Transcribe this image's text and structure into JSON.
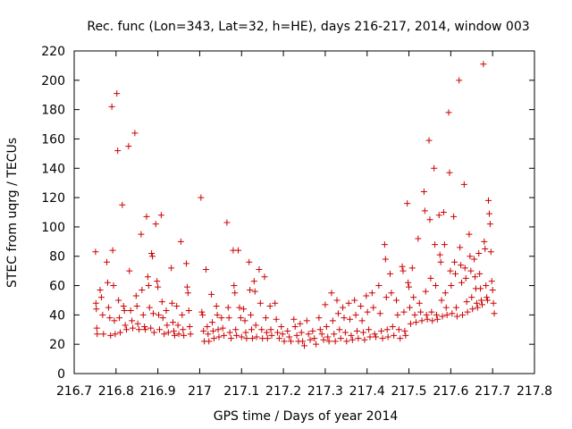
{
  "chart_data": {
    "type": "scatter",
    "title": "Rec. func (Lon=343, Lat=32, h=HE), days 216-217, 2014, window 003",
    "xlabel": "GPS time / Days of year 2014",
    "ylabel": "STEC from uqrg / TECUs",
    "xlim": [
      216.7,
      217.8
    ],
    "ylim": [
      0,
      220
    ],
    "xticks": [
      "216.7",
      "216.8",
      "216.9",
      "217",
      "217.1",
      "217.2",
      "217.3",
      "217.4",
      "217.5",
      "217.6",
      "217.7",
      "217.8"
    ],
    "yticks": [
      "0",
      "20",
      "40",
      "60",
      "80",
      "100",
      "120",
      "140",
      "160",
      "180",
      "200",
      "220"
    ],
    "grid": false,
    "legend": "none",
    "marker": "plus",
    "color": "#cc0000",
    "points": [
      [
        216.751,
        83
      ],
      [
        216.752,
        48
      ],
      [
        216.753,
        44
      ],
      [
        216.754,
        31
      ],
      [
        216.755,
        27
      ],
      [
        216.762,
        57
      ],
      [
        216.765,
        52
      ],
      [
        216.768,
        40
      ],
      [
        216.77,
        27
      ],
      [
        216.778,
        76
      ],
      [
        216.78,
        62
      ],
      [
        216.782,
        45
      ],
      [
        216.785,
        38
      ],
      [
        216.787,
        26
      ],
      [
        216.79,
        182
      ],
      [
        216.792,
        84
      ],
      [
        216.794,
        60
      ],
      [
        216.796,
        36
      ],
      [
        216.798,
        27
      ],
      [
        216.802,
        191
      ],
      [
        216.804,
        152
      ],
      [
        216.806,
        50
      ],
      [
        216.808,
        38
      ],
      [
        216.81,
        28
      ],
      [
        216.815,
        115
      ],
      [
        216.818,
        46
      ],
      [
        216.82,
        43
      ],
      [
        216.822,
        33
      ],
      [
        216.825,
        30
      ],
      [
        216.83,
        155
      ],
      [
        216.832,
        70
      ],
      [
        216.835,
        43
      ],
      [
        216.838,
        36
      ],
      [
        216.84,
        31
      ],
      [
        216.845,
        164
      ],
      [
        216.848,
        53
      ],
      [
        216.85,
        46
      ],
      [
        216.852,
        34
      ],
      [
        216.855,
        30
      ],
      [
        216.86,
        95
      ],
      [
        216.862,
        57
      ],
      [
        216.865,
        40
      ],
      [
        216.868,
        32
      ],
      [
        216.87,
        30
      ],
      [
        216.873,
        107
      ],
      [
        216.876,
        66
      ],
      [
        216.878,
        60
      ],
      [
        216.88,
        45
      ],
      [
        216.883,
        31
      ],
      [
        216.885,
        82
      ],
      [
        216.887,
        80
      ],
      [
        216.889,
        41
      ],
      [
        216.891,
        28
      ],
      [
        216.895,
        102
      ],
      [
        216.898,
        63
      ],
      [
        216.9,
        59
      ],
      [
        216.902,
        40
      ],
      [
        216.904,
        30
      ],
      [
        216.908,
        108
      ],
      [
        216.91,
        49
      ],
      [
        216.912,
        38
      ],
      [
        216.915,
        27
      ],
      [
        216.92,
        43
      ],
      [
        216.922,
        33
      ],
      [
        216.925,
        28
      ],
      [
        216.932,
        72
      ],
      [
        216.934,
        48
      ],
      [
        216.936,
        35
      ],
      [
        216.938,
        29
      ],
      [
        216.94,
        26
      ],
      [
        216.945,
        46
      ],
      [
        216.948,
        33
      ],
      [
        216.95,
        27
      ],
      [
        216.955,
        90
      ],
      [
        216.958,
        40
      ],
      [
        216.96,
        30
      ],
      [
        216.962,
        26
      ],
      [
        216.968,
        75
      ],
      [
        216.97,
        59
      ],
      [
        216.972,
        55
      ],
      [
        216.974,
        43
      ],
      [
        216.976,
        32
      ],
      [
        216.978,
        27
      ],
      [
        217.003,
        120
      ],
      [
        217.005,
        42
      ],
      [
        217.007,
        40
      ],
      [
        217.009,
        29
      ],
      [
        217.011,
        22
      ],
      [
        217.015,
        71
      ],
      [
        217.018,
        32
      ],
      [
        217.02,
        27
      ],
      [
        217.022,
        22
      ],
      [
        217.028,
        54
      ],
      [
        217.03,
        35
      ],
      [
        217.032,
        29
      ],
      [
        217.034,
        24
      ],
      [
        217.04,
        46
      ],
      [
        217.042,
        40
      ],
      [
        217.044,
        30
      ],
      [
        217.046,
        25
      ],
      [
        217.052,
        38
      ],
      [
        217.055,
        31
      ],
      [
        217.058,
        26
      ],
      [
        217.065,
        103
      ],
      [
        217.068,
        45
      ],
      [
        217.07,
        38
      ],
      [
        217.072,
        28
      ],
      [
        217.075,
        24
      ],
      [
        217.08,
        84
      ],
      [
        217.082,
        60
      ],
      [
        217.084,
        55
      ],
      [
        217.086,
        30
      ],
      [
        217.088,
        26
      ],
      [
        217.092,
        84
      ],
      [
        217.095,
        45
      ],
      [
        217.098,
        38
      ],
      [
        217.1,
        25
      ],
      [
        217.105,
        44
      ],
      [
        217.108,
        36
      ],
      [
        217.11,
        28
      ],
      [
        217.112,
        24
      ],
      [
        217.118,
        76
      ],
      [
        217.12,
        57
      ],
      [
        217.122,
        40
      ],
      [
        217.124,
        30
      ],
      [
        217.126,
        24
      ],
      [
        217.13,
        63
      ],
      [
        217.132,
        56
      ],
      [
        217.134,
        33
      ],
      [
        217.136,
        25
      ],
      [
        217.142,
        71
      ],
      [
        217.145,
        48
      ],
      [
        217.148,
        30
      ],
      [
        217.15,
        24
      ],
      [
        217.155,
        66
      ],
      [
        217.158,
        38
      ],
      [
        217.16,
        28
      ],
      [
        217.162,
        24
      ],
      [
        217.168,
        46
      ],
      [
        217.17,
        30
      ],
      [
        217.172,
        26
      ],
      [
        217.18,
        48
      ],
      [
        217.183,
        37
      ],
      [
        217.186,
        28
      ],
      [
        217.19,
        24
      ],
      [
        217.195,
        32
      ],
      [
        217.198,
        27
      ],
      [
        217.202,
        22
      ],
      [
        217.21,
        29
      ],
      [
        217.214,
        25
      ],
      [
        217.218,
        22
      ],
      [
        217.225,
        37
      ],
      [
        217.228,
        32
      ],
      [
        217.232,
        26
      ],
      [
        217.236,
        22
      ],
      [
        217.24,
        34
      ],
      [
        217.243,
        28
      ],
      [
        217.246,
        22
      ],
      [
        217.25,
        19
      ],
      [
        217.256,
        36
      ],
      [
        217.26,
        27
      ],
      [
        217.264,
        23
      ],
      [
        217.27,
        29
      ],
      [
        217.274,
        24
      ],
      [
        217.278,
        20
      ],
      [
        217.285,
        38
      ],
      [
        217.288,
        30
      ],
      [
        217.292,
        27
      ],
      [
        217.296,
        23
      ],
      [
        217.3,
        47
      ],
      [
        217.303,
        32
      ],
      [
        217.306,
        25
      ],
      [
        217.309,
        22
      ],
      [
        217.315,
        55
      ],
      [
        217.318,
        36
      ],
      [
        217.321,
        27
      ],
      [
        217.324,
        22
      ],
      [
        217.328,
        50
      ],
      [
        217.331,
        41
      ],
      [
        217.334,
        30
      ],
      [
        217.337,
        24
      ],
      [
        217.342,
        45
      ],
      [
        217.345,
        38
      ],
      [
        217.348,
        28
      ],
      [
        217.351,
        22
      ],
      [
        217.356,
        48
      ],
      [
        217.359,
        37
      ],
      [
        217.362,
        26
      ],
      [
        217.365,
        23
      ],
      [
        217.37,
        50
      ],
      [
        217.373,
        40
      ],
      [
        217.376,
        29
      ],
      [
        217.379,
        24
      ],
      [
        217.385,
        46
      ],
      [
        217.388,
        36
      ],
      [
        217.391,
        28
      ],
      [
        217.394,
        23
      ],
      [
        217.398,
        53
      ],
      [
        217.401,
        42
      ],
      [
        217.404,
        30
      ],
      [
        217.407,
        25
      ],
      [
        217.412,
        55
      ],
      [
        217.415,
        45
      ],
      [
        217.418,
        27
      ],
      [
        217.421,
        25
      ],
      [
        217.428,
        60
      ],
      [
        217.431,
        41
      ],
      [
        217.434,
        29
      ],
      [
        217.437,
        24
      ],
      [
        217.442,
        88
      ],
      [
        217.444,
        78
      ],
      [
        217.446,
        52
      ],
      [
        217.448,
        30
      ],
      [
        217.45,
        25
      ],
      [
        217.455,
        68
      ],
      [
        217.458,
        55
      ],
      [
        217.461,
        32
      ],
      [
        217.464,
        26
      ],
      [
        217.47,
        50
      ],
      [
        217.473,
        40
      ],
      [
        217.476,
        30
      ],
      [
        217.479,
        24
      ],
      [
        217.484,
        73
      ],
      [
        217.486,
        70
      ],
      [
        217.488,
        42
      ],
      [
        217.49,
        29
      ],
      [
        217.492,
        26
      ],
      [
        217.496,
        116
      ],
      [
        217.498,
        62
      ],
      [
        217.5,
        59
      ],
      [
        217.502,
        45
      ],
      [
        217.504,
        34
      ],
      [
        217.508,
        72
      ],
      [
        217.511,
        52
      ],
      [
        217.514,
        40
      ],
      [
        217.517,
        35
      ],
      [
        217.522,
        92
      ],
      [
        217.525,
        48
      ],
      [
        217.528,
        42
      ],
      [
        217.531,
        36
      ],
      [
        217.536,
        124
      ],
      [
        217.538,
        111
      ],
      [
        217.54,
        56
      ],
      [
        217.542,
        40
      ],
      [
        217.544,
        37
      ],
      [
        217.548,
        159
      ],
      [
        217.55,
        105
      ],
      [
        217.552,
        65
      ],
      [
        217.554,
        42
      ],
      [
        217.556,
        36
      ],
      [
        217.56,
        140
      ],
      [
        217.562,
        88
      ],
      [
        217.564,
        60
      ],
      [
        217.566,
        40
      ],
      [
        217.568,
        37
      ],
      [
        217.572,
        108
      ],
      [
        217.574,
        81
      ],
      [
        217.576,
        76
      ],
      [
        217.578,
        50
      ],
      [
        217.58,
        39
      ],
      [
        217.583,
        110
      ],
      [
        217.585,
        88
      ],
      [
        217.587,
        55
      ],
      [
        217.589,
        45
      ],
      [
        217.591,
        40
      ],
      [
        217.595,
        178
      ],
      [
        217.597,
        137
      ],
      [
        217.599,
        70
      ],
      [
        217.601,
        60
      ],
      [
        217.603,
        41
      ],
      [
        217.607,
        107
      ],
      [
        217.609,
        76
      ],
      [
        217.611,
        68
      ],
      [
        217.613,
        45
      ],
      [
        217.615,
        39
      ],
      [
        217.62,
        200
      ],
      [
        217.622,
        86
      ],
      [
        217.624,
        74
      ],
      [
        217.626,
        62
      ],
      [
        217.628,
        40
      ],
      [
        217.632,
        129
      ],
      [
        217.634,
        72
      ],
      [
        217.636,
        65
      ],
      [
        217.638,
        49
      ],
      [
        217.64,
        42
      ],
      [
        217.644,
        95
      ],
      [
        217.646,
        80
      ],
      [
        217.648,
        70
      ],
      [
        217.65,
        52
      ],
      [
        217.652,
        44
      ],
      [
        217.656,
        78
      ],
      [
        217.658,
        66
      ],
      [
        217.66,
        58
      ],
      [
        217.662,
        48
      ],
      [
        217.664,
        45
      ],
      [
        217.667,
        82
      ],
      [
        217.669,
        68
      ],
      [
        217.671,
        58
      ],
      [
        217.673,
        50
      ],
      [
        217.675,
        47
      ],
      [
        217.678,
        211
      ],
      [
        217.68,
        90
      ],
      [
        217.682,
        85
      ],
      [
        217.684,
        60
      ],
      [
        217.686,
        52
      ],
      [
        217.688,
        50
      ],
      [
        217.69,
        118
      ],
      [
        217.692,
        109
      ],
      [
        217.694,
        102
      ],
      [
        217.696,
        83
      ],
      [
        217.698,
        63
      ],
      [
        217.7,
        57
      ],
      [
        217.702,
        48
      ],
      [
        217.704,
        41
      ]
    ]
  }
}
